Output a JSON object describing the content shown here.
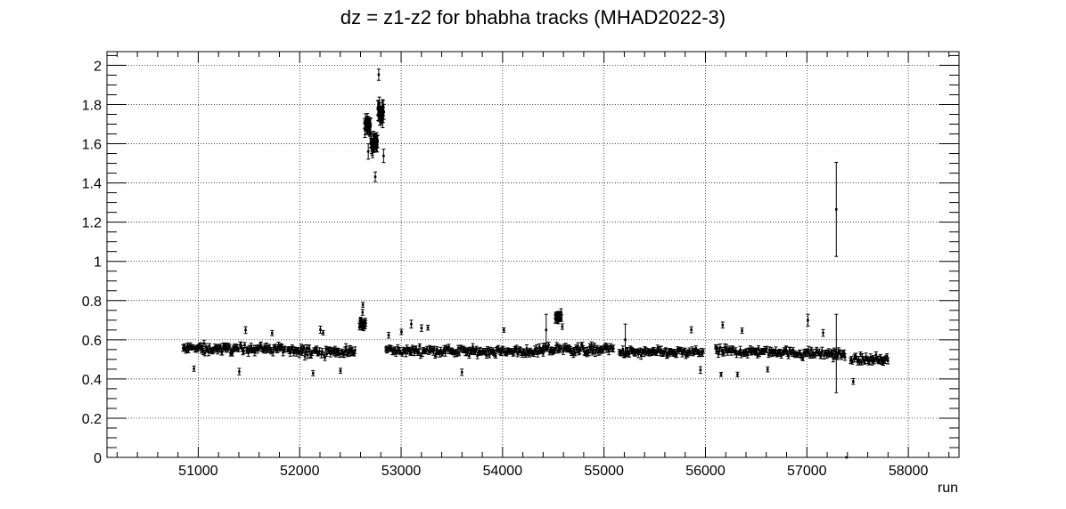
{
  "chart_data": {
    "type": "scatter",
    "title": "dz = z1-z2 for bhabha tracks  (MHAD2022-3)",
    "xlabel": "run",
    "ylabel": "",
    "xlim": [
      50100,
      58500
    ],
    "ylim": [
      0,
      2.07
    ],
    "xticks": [
      51000,
      52000,
      53000,
      54000,
      55000,
      56000,
      57000,
      58000
    ],
    "xtick_labels": [
      "51000",
      "52000",
      "53000",
      "54000",
      "55000",
      "56000",
      "57000",
      "58000"
    ],
    "yticks": [
      0,
      0.2,
      0.4,
      0.6,
      0.8,
      1,
      1.2,
      1.4,
      1.6,
      1.8,
      2
    ],
    "ytick_labels": [
      "0",
      "0.2",
      "0.4",
      "0.6",
      "0.8",
      "1",
      "1.2",
      "1.4",
      "1.6",
      "1.8",
      "2"
    ],
    "grid": true,
    "marker_color": "#000000",
    "segments": [
      {
        "x_start": 50850,
        "x_end": 51350,
        "mean": 0.555,
        "spread": 0.035,
        "err": 0.013
      },
      {
        "x_start": 51350,
        "x_end": 51860,
        "mean": 0.555,
        "spread": 0.03,
        "err": 0.013
      },
      {
        "x_start": 51880,
        "x_end": 52550,
        "mean": 0.54,
        "spread": 0.035,
        "err": 0.014
      },
      {
        "x_start": 52850,
        "x_end": 53500,
        "mean": 0.545,
        "spread": 0.03,
        "err": 0.013
      },
      {
        "x_start": 53500,
        "x_end": 54400,
        "mean": 0.54,
        "spread": 0.03,
        "err": 0.013
      },
      {
        "x_start": 54400,
        "x_end": 55100,
        "mean": 0.55,
        "spread": 0.035,
        "err": 0.013
      },
      {
        "x_start": 55150,
        "x_end": 55980,
        "mean": 0.535,
        "spread": 0.03,
        "err": 0.013
      },
      {
        "x_start": 56100,
        "x_end": 56800,
        "mean": 0.54,
        "spread": 0.03,
        "err": 0.013
      },
      {
        "x_start": 56800,
        "x_end": 57380,
        "mean": 0.53,
        "spread": 0.03,
        "err": 0.013
      },
      {
        "x_start": 57430,
        "x_end": 57800,
        "mean": 0.5,
        "spread": 0.03,
        "err": 0.013
      }
    ],
    "clusters": [
      {
        "x_start": 52590,
        "x_end": 52650,
        "mean": 0.68,
        "spread": 0.035,
        "err": 0.015
      },
      {
        "x_start": 52640,
        "x_end": 52700,
        "mean": 1.7,
        "spread": 0.05,
        "err": 0.03
      },
      {
        "x_start": 52700,
        "x_end": 52770,
        "mean": 1.6,
        "spread": 0.05,
        "err": 0.025
      },
      {
        "x_start": 52770,
        "x_end": 52830,
        "mean": 1.76,
        "spread": 0.07,
        "err": 0.03
      },
      {
        "x_start": 54520,
        "x_end": 54580,
        "mean": 0.72,
        "spread": 0.025,
        "err": 0.015
      }
    ],
    "points": [
      {
        "x": 57290,
        "y": 1.265,
        "err": 0.24
      },
      {
        "x": 57290,
        "y": 0.53,
        "err": 0.2
      },
      {
        "x": 54430,
        "y": 0.65,
        "err": 0.08
      },
      {
        "x": 55210,
        "y": 0.6,
        "err": 0.08
      },
      {
        "x": 53100,
        "y": 0.68,
        "err": 0.02
      },
      {
        "x": 56170,
        "y": 0.675,
        "err": 0.015
      },
      {
        "x": 57010,
        "y": 0.7,
        "err": 0.03
      },
      {
        "x": 57390,
        "y": 0.0,
        "err": 0.0
      },
      {
        "x": 52620,
        "y": 0.74,
        "err": 0.015
      }
    ]
  }
}
